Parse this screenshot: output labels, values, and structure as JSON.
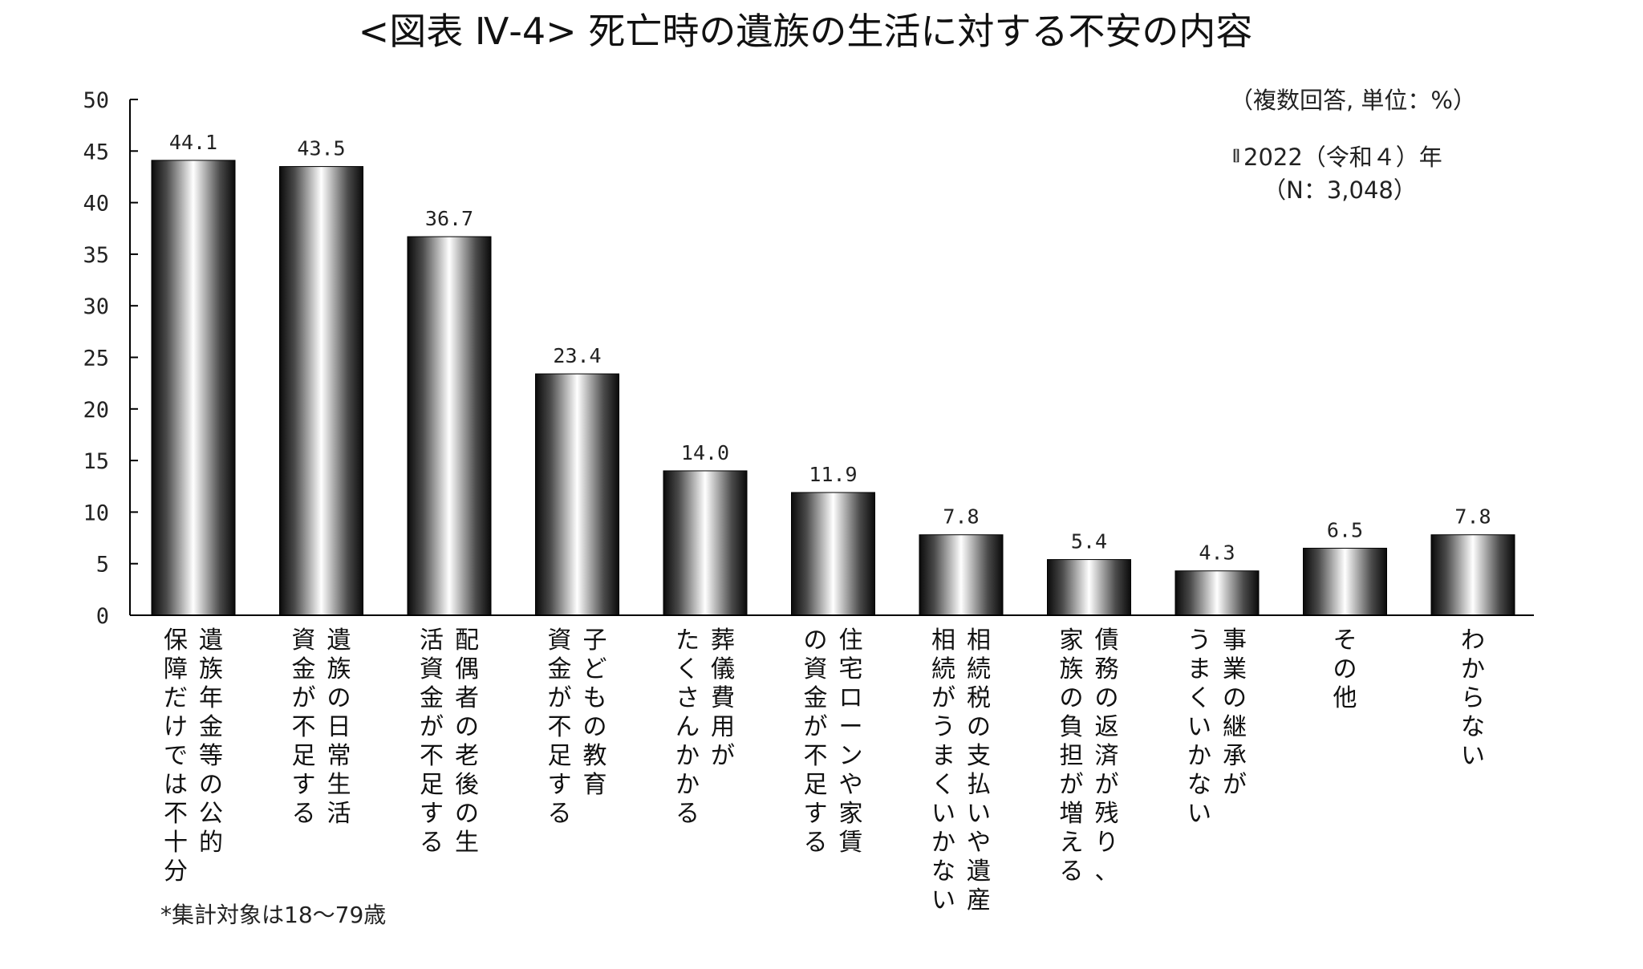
{
  "chart_data": {
    "type": "bar",
    "title": "<図表 Ⅳ-4> 死亡時の遺族の生活に対する不安の内容",
    "unit_note": "（複数回答, 単位：%）",
    "legend": {
      "series_label": "2022（令和４）年",
      "sample_size": "（N：3,048）",
      "position": "top-right"
    },
    "ylim": [
      0,
      50
    ],
    "yticks": [
      0,
      5,
      10,
      15,
      20,
      25,
      30,
      35,
      40,
      45,
      50
    ],
    "grid": false,
    "categories": [
      [
        "遺族年金等の公的",
        "保障だけでは不十分"
      ],
      [
        "遺族の日常生活",
        "資金が不足する"
      ],
      [
        "配偶者の老後の生",
        "活資金が不足する"
      ],
      [
        "子どもの教育",
        "資金が不足する"
      ],
      [
        "葬儀費用が",
        "たくさんかかる"
      ],
      [
        "住宅ローンや家賃",
        "の資金が不足する"
      ],
      [
        "相続税の支払いや遺産",
        "相続がうまくいかない"
      ],
      [
        "債務の返済が残り、",
        "家族の負担が増える"
      ],
      [
        "事業の継承が",
        "うまくいかない"
      ],
      [
        "その他"
      ],
      [
        "わからない"
      ]
    ],
    "series": [
      {
        "name": "2022（令和４）年",
        "values": [
          44.1,
          43.5,
          36.7,
          23.4,
          14.0,
          11.9,
          7.8,
          5.4,
          4.3,
          6.5,
          7.8
        ],
        "labels": [
          "44.1",
          "43.5",
          "36.7",
          "23.4",
          "14.0",
          "11.9",
          "7.8",
          "5.4",
          "4.3",
          "6.5",
          "7.8"
        ]
      }
    ],
    "footnote": "*集計対象は18～79歳"
  }
}
